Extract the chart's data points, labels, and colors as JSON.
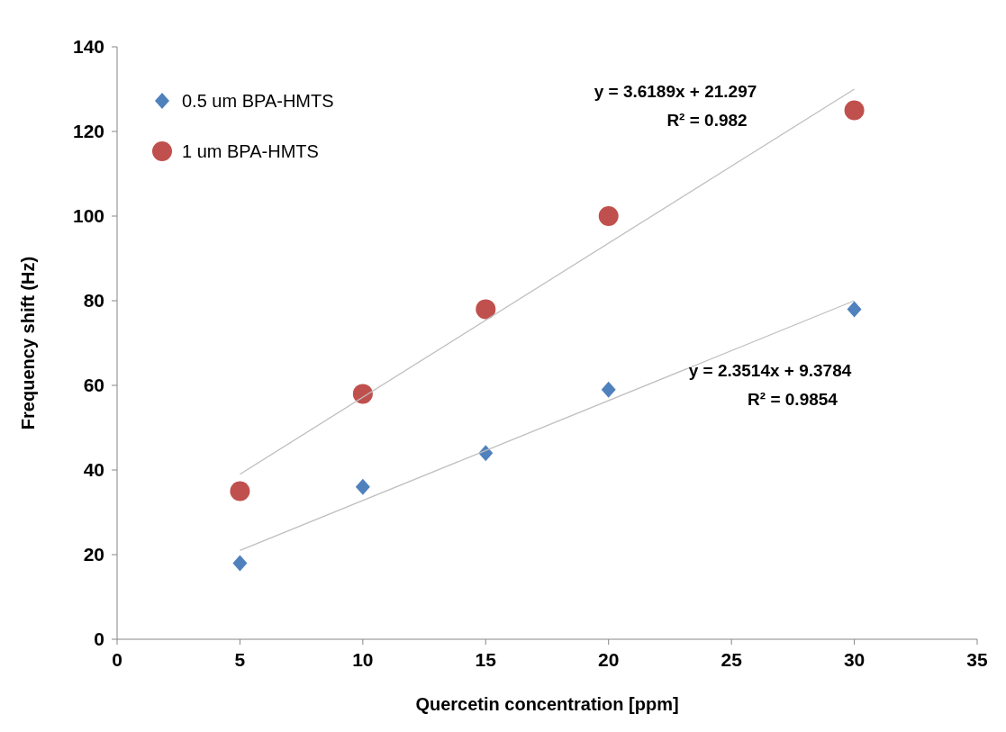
{
  "chart_data": {
    "type": "scatter",
    "xlabel": "Quercetin concentration [ppm]",
    "ylabel": "Frequency shift (Hz)",
    "xlim": [
      0,
      35
    ],
    "xticks": [
      0,
      5,
      10,
      15,
      20,
      25,
      30,
      35
    ],
    "ylim": [
      0,
      140
    ],
    "yticks": [
      0,
      20,
      40,
      60,
      80,
      100,
      120,
      140
    ],
    "grid": false,
    "legend": "top left",
    "series": [
      {
        "name": "0.5 um BPA-HMTS",
        "color": "#4f81bd",
        "marker": "diamond",
        "x": [
          5,
          10,
          15,
          20,
          30
        ],
        "values": [
          18,
          36,
          44,
          59,
          78
        ]
      },
      {
        "name": "1 um BPA-HMTS",
        "color": "#c0504d",
        "marker": "circle",
        "x": [
          5,
          10,
          15,
          20,
          30
        ],
        "values": [
          35,
          58,
          78,
          100,
          125
        ]
      },
      {
        "type": "line",
        "color": "#bfbfbf",
        "marker": "none",
        "x": [
          5,
          30
        ],
        "values": [
          21,
          80
        ]
      },
      {
        "type": "line",
        "color": "#bfbfbf",
        "marker": "none",
        "x": [
          5,
          30
        ],
        "values": [
          39,
          130
        ]
      }
    ],
    "annotations": [
      "y = 3.6189x + 21.297",
      "R² = 0.982",
      "y = 2.3514x + 9.3784",
      "R² = 0.9854"
    ]
  }
}
